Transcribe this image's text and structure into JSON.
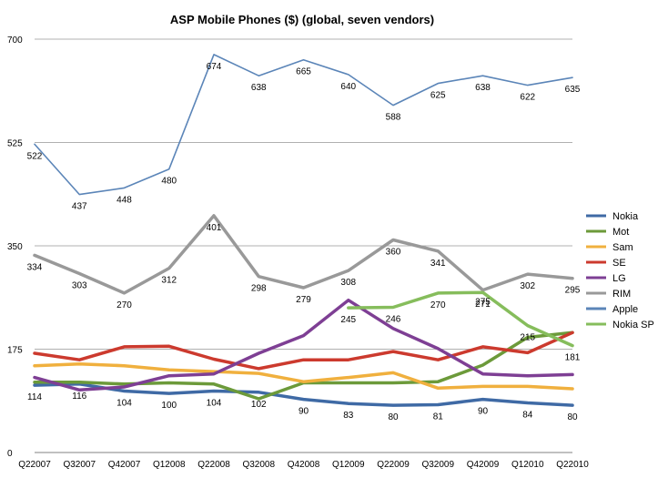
{
  "chart_data": {
    "type": "line",
    "title": "ASP Mobile Phones ($) (global, seven vendors)",
    "xlabel": "",
    "ylabel": "",
    "ylim": [
      0,
      700
    ],
    "yticks": [
      0,
      175,
      350,
      525,
      700
    ],
    "grid": true,
    "legend_position": "right",
    "categories": [
      "Q22007",
      "Q32007",
      "Q42007",
      "Q12008",
      "Q22008",
      "Q32008",
      "Q42008",
      "Q12009",
      "Q22009",
      "Q32009",
      "Q42009",
      "Q12010",
      "Q22010"
    ],
    "series": [
      {
        "name": "Nokia",
        "color": "#3f6aa5",
        "labeled": true,
        "values": [
          114,
          116,
          104,
          100,
          104,
          102,
          90,
          83,
          80,
          81,
          90,
          84,
          80
        ]
      },
      {
        "name": "Mot",
        "color": "#6c9a3a",
        "labeled": false,
        "values": [
          119,
          119,
          116,
          118,
          116,
          91,
          118,
          118,
          118,
          120,
          148,
          195,
          203
        ]
      },
      {
        "name": "Sam",
        "color": "#f0b03e",
        "labeled": false,
        "values": [
          147,
          150,
          147,
          140,
          137,
          134,
          120,
          127,
          135,
          109,
          112,
          112,
          108
        ]
      },
      {
        "name": "SE",
        "color": "#cc3a2e",
        "labeled": false,
        "values": [
          168,
          157,
          179,
          180,
          158,
          142,
          157,
          157,
          171,
          157,
          179,
          169,
          203
        ]
      },
      {
        "name": "LG",
        "color": "#7e3f94",
        "labeled": false,
        "values": [
          127,
          106,
          111,
          130,
          133,
          168,
          198,
          258,
          210,
          176,
          133,
          130,
          132
        ]
      },
      {
        "name": "RIM",
        "color": "#999999",
        "labeled": true,
        "values": [
          334,
          303,
          270,
          312,
          401,
          298,
          279,
          308,
          360,
          341,
          275,
          302,
          295
        ]
      },
      {
        "name": "Apple",
        "color": "#5b85b8",
        "labeled": true,
        "values": [
          522,
          437,
          448,
          480,
          674,
          638,
          665,
          640,
          588,
          625,
          638,
          622,
          635
        ]
      },
      {
        "name": "Nokia SP",
        "color": "#86bd5c",
        "labeled": true,
        "start_index": 7,
        "values": [
          null,
          null,
          null,
          null,
          null,
          null,
          null,
          245,
          246,
          270,
          271,
          215,
          181
        ]
      }
    ]
  }
}
